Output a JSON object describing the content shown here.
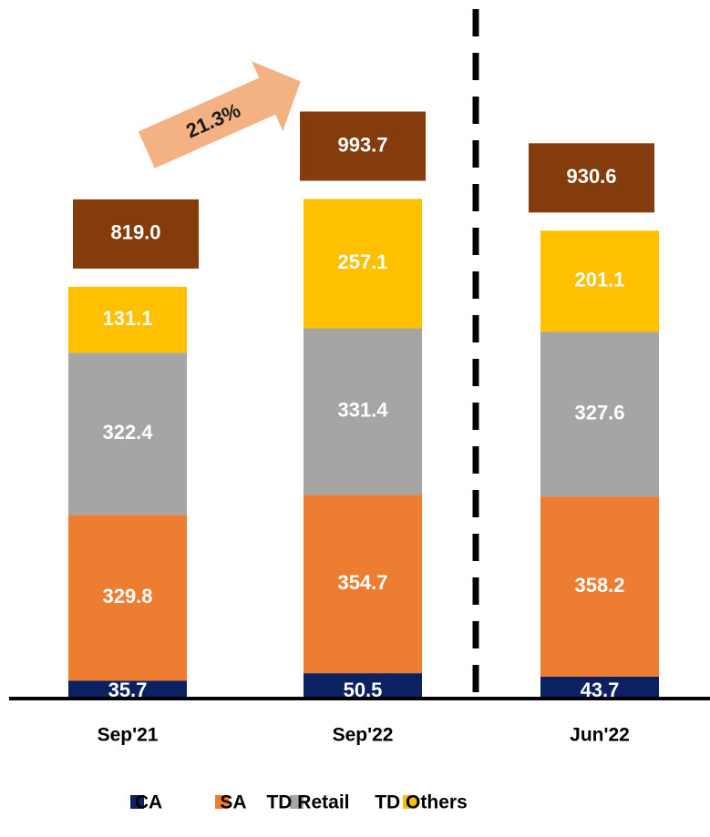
{
  "chart_data": {
    "type": "stacked_bar",
    "categories": [
      "Sep'21",
      "Sep'22",
      "Jun'22"
    ],
    "series": [
      {
        "name": "CA",
        "color": "#0b2161",
        "values": [
          35.7,
          50.5,
          43.7
        ]
      },
      {
        "name": "SA",
        "color": "#ed7d31",
        "values": [
          329.8,
          354.7,
          358.2
        ]
      },
      {
        "name": "TD Retail",
        "color": "#a5a5a5",
        "values": [
          322.4,
          331.4,
          327.6
        ]
      },
      {
        "name": "TD Others",
        "color": "#ffc000",
        "values": [
          131.1,
          257.1,
          201.1
        ]
      }
    ],
    "totals": {
      "color": "#843c0c",
      "values": [
        819,
        993.7,
        930.6
      ],
      "value_labels": [
        "819.0",
        "993.7",
        "930.6"
      ]
    },
    "annotation": "21.3%",
    "legend": "bottom"
  }
}
